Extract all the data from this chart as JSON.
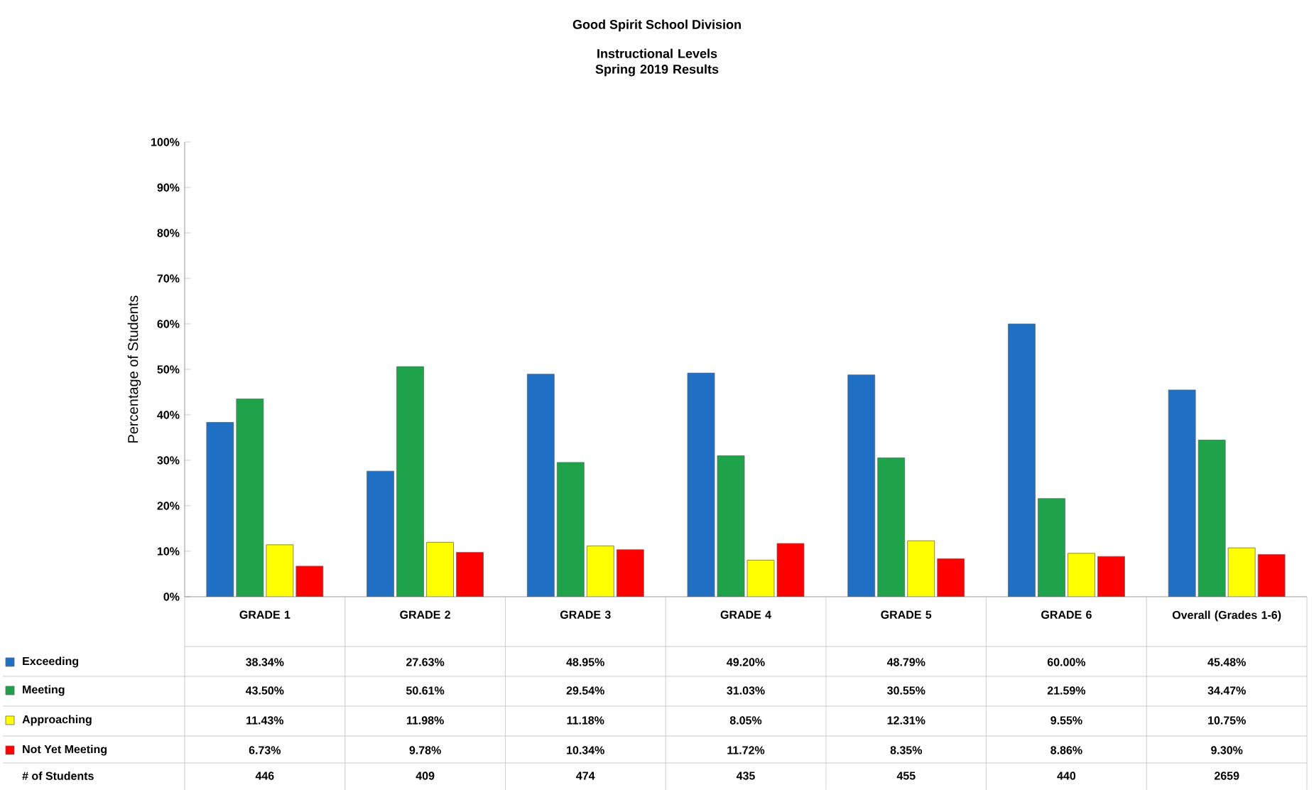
{
  "chart_data": {
    "type": "bar",
    "title": "Good Spirit School Division",
    "subtitle": "Instructional Levels Spring 2019 Results",
    "ylabel": "Percentage of Students",
    "categories": [
      "GRADE 1",
      "GRADE 2",
      "GRADE 3",
      "GRADE 4",
      "GRADE 5",
      "GRADE 6",
      "Overall (Grades 1-6)"
    ],
    "ylim": [
      0,
      100
    ],
    "yticks": [
      {
        "value": 0,
        "label": "0%"
      },
      {
        "value": 10,
        "label": "10%"
      },
      {
        "value": 20,
        "label": "20%"
      },
      {
        "value": 30,
        "label": "30%"
      },
      {
        "value": 40,
        "label": "40%"
      },
      {
        "value": 50,
        "label": "50%"
      },
      {
        "value": 60,
        "label": "60%"
      },
      {
        "value": 70,
        "label": "70%"
      },
      {
        "value": 80,
        "label": "80%"
      },
      {
        "value": 90,
        "label": "90%"
      },
      {
        "value": 100,
        "label": "100%"
      }
    ],
    "legend": "bottom",
    "series": [
      {
        "name": "Exceeding",
        "color": "#1f6fc5",
        "values": [
          38.34,
          27.63,
          48.95,
          49.2,
          48.79,
          60.0,
          45.48
        ],
        "value_labels": [
          "38.34%",
          "27.63%",
          "48.95%",
          "49.20%",
          "48.79%",
          "60.00%",
          "45.48%"
        ]
      },
      {
        "name": "Meeting",
        "color": "#1fa34a",
        "values": [
          43.5,
          50.61,
          29.54,
          31.03,
          30.55,
          21.59,
          34.47
        ],
        "value_labels": [
          "43.50%",
          "50.61%",
          "29.54%",
          "31.03%",
          "30.55%",
          "21.59%",
          "34.47%"
        ]
      },
      {
        "name": "Approaching",
        "color": "#ffff00",
        "values": [
          11.43,
          11.98,
          11.18,
          8.05,
          12.31,
          9.55,
          10.75
        ],
        "value_labels": [
          "11.43%",
          "11.98%",
          "11.18%",
          "8.05%",
          "12.31%",
          "9.55%",
          "10.75%"
        ]
      },
      {
        "name": "Not Yet Meeting",
        "color": "#ff0000",
        "values": [
          6.73,
          9.78,
          10.34,
          11.72,
          8.35,
          8.86,
          9.3
        ],
        "value_labels": [
          "6.73%",
          "9.78%",
          "10.34%",
          "11.72%",
          "8.35%",
          "8.86%",
          "9.30%"
        ]
      }
    ],
    "annotations": [
      "# of Students",
      "446",
      "409",
      "474",
      "435",
      "455",
      "440",
      "2659"
    ]
  }
}
